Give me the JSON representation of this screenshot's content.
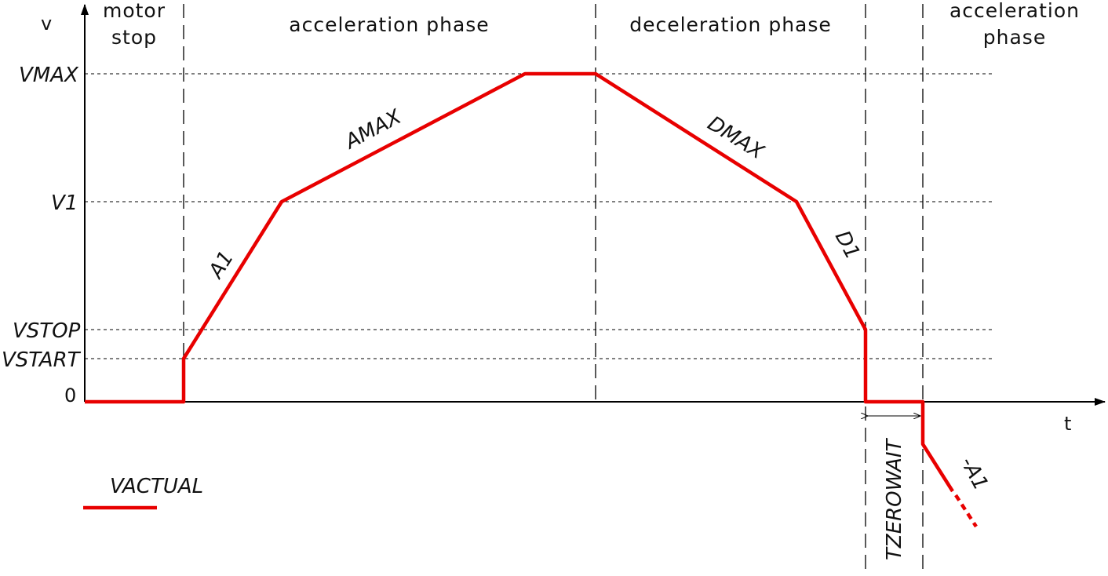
{
  "axes": {
    "y_label": "v",
    "x_label": "t",
    "zero_label": "0"
  },
  "levels": {
    "vmax": "VMAX",
    "v1": "V1",
    "vstop": "VSTOP",
    "vstart": "VSTART"
  },
  "phases": {
    "motor_stop_line1": "motor",
    "motor_stop_line2": "stop",
    "acceleration": "acceleration phase",
    "deceleration": "deceleration phase",
    "acceleration2_line1": "acceleration",
    "acceleration2_line2": "phase"
  },
  "segments": {
    "a1": "A1",
    "amax": "AMAX",
    "dmax": "DMAX",
    "d1": "D1",
    "neg_a1": "-A1"
  },
  "timing": {
    "tzerowait": "TZEROWAIT"
  },
  "legend": {
    "vactual": "VACTUAL"
  },
  "colors": {
    "curve": "#e80000",
    "axis": "#000000",
    "guide": "#000000"
  }
}
